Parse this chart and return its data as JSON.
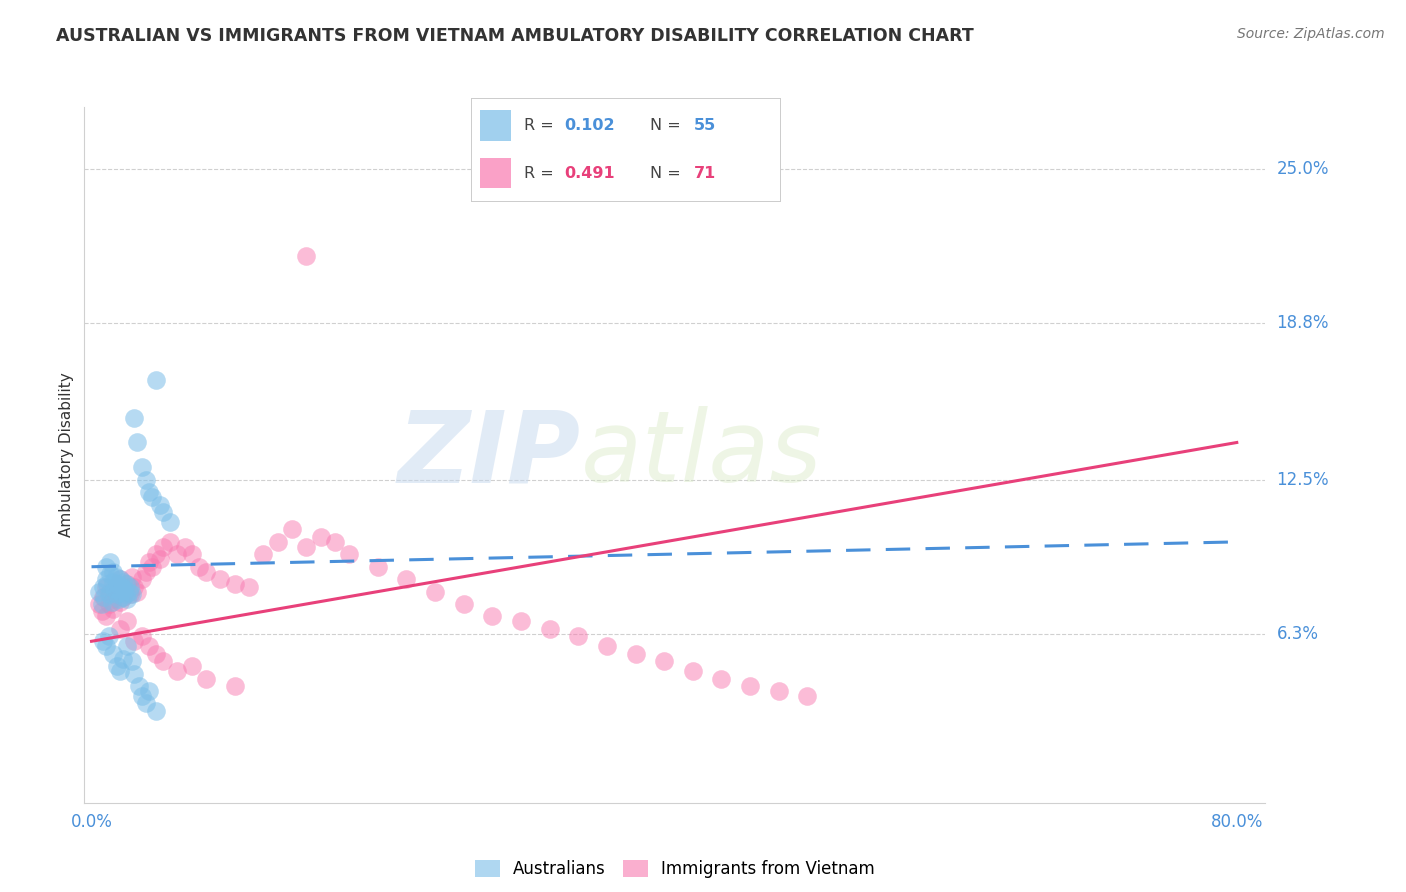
{
  "title": "AUSTRALIAN VS IMMIGRANTS FROM VIETNAM AMBULATORY DISABILITY CORRELATION CHART",
  "source": "Source: ZipAtlas.com",
  "ylabel": "Ambulatory Disability",
  "ytick_labels": [
    "6.3%",
    "12.5%",
    "18.8%",
    "25.0%"
  ],
  "ytick_values": [
    0.063,
    0.125,
    0.188,
    0.25
  ],
  "xlim": [
    -0.005,
    0.82
  ],
  "ylim": [
    -0.005,
    0.275
  ],
  "color_blue": "#7abde8",
  "color_pink": "#f87ab0",
  "color_blue_line": "#4a90d9",
  "color_pink_line": "#e8407a",
  "color_axis_label": "#4a90d9",
  "background": "#ffffff",
  "watermark_zip": "ZIP",
  "watermark_atlas": "atlas",
  "grid_color": "#d0d0d0",
  "aus_x": [
    0.005,
    0.007,
    0.008,
    0.009,
    0.01,
    0.01,
    0.011,
    0.012,
    0.013,
    0.013,
    0.014,
    0.015,
    0.015,
    0.016,
    0.017,
    0.018,
    0.018,
    0.019,
    0.02,
    0.02,
    0.021,
    0.022,
    0.022,
    0.023,
    0.024,
    0.024,
    0.025,
    0.026,
    0.027,
    0.028,
    0.03,
    0.032,
    0.035,
    0.038,
    0.04,
    0.042,
    0.045,
    0.048,
    0.05,
    0.055,
    0.008,
    0.01,
    0.012,
    0.015,
    0.018,
    0.02,
    0.022,
    0.025,
    0.028,
    0.03,
    0.033,
    0.035,
    0.038,
    0.04,
    0.045
  ],
  "aus_y": [
    0.08,
    0.075,
    0.082,
    0.078,
    0.085,
    0.09,
    0.083,
    0.079,
    0.087,
    0.092,
    0.076,
    0.084,
    0.088,
    0.081,
    0.086,
    0.079,
    0.083,
    0.077,
    0.08,
    0.085,
    0.082,
    0.078,
    0.084,
    0.081,
    0.079,
    0.083,
    0.077,
    0.08,
    0.082,
    0.079,
    0.15,
    0.14,
    0.13,
    0.125,
    0.12,
    0.118,
    0.165,
    0.115,
    0.112,
    0.108,
    0.06,
    0.058,
    0.062,
    0.055,
    0.05,
    0.048,
    0.053,
    0.058,
    0.052,
    0.047,
    0.042,
    0.038,
    0.035,
    0.04,
    0.032
  ],
  "viet_x": [
    0.005,
    0.007,
    0.008,
    0.01,
    0.01,
    0.012,
    0.013,
    0.015,
    0.015,
    0.017,
    0.018,
    0.02,
    0.02,
    0.022,
    0.023,
    0.025,
    0.027,
    0.028,
    0.03,
    0.032,
    0.035,
    0.038,
    0.04,
    0.042,
    0.045,
    0.048,
    0.05,
    0.055,
    0.06,
    0.065,
    0.07,
    0.075,
    0.08,
    0.09,
    0.1,
    0.11,
    0.12,
    0.13,
    0.14,
    0.15,
    0.16,
    0.17,
    0.18,
    0.2,
    0.22,
    0.24,
    0.26,
    0.28,
    0.3,
    0.32,
    0.34,
    0.36,
    0.38,
    0.4,
    0.42,
    0.44,
    0.46,
    0.48,
    0.5,
    0.15,
    0.02,
    0.025,
    0.03,
    0.035,
    0.04,
    0.045,
    0.05,
    0.06,
    0.07,
    0.08,
    0.1
  ],
  "viet_y": [
    0.075,
    0.072,
    0.078,
    0.07,
    0.082,
    0.075,
    0.08,
    0.077,
    0.073,
    0.079,
    0.082,
    0.076,
    0.085,
    0.078,
    0.08,
    0.083,
    0.079,
    0.086,
    0.082,
    0.08,
    0.085,
    0.088,
    0.092,
    0.09,
    0.095,
    0.093,
    0.098,
    0.1,
    0.095,
    0.098,
    0.095,
    0.09,
    0.088,
    0.085,
    0.083,
    0.082,
    0.095,
    0.1,
    0.105,
    0.098,
    0.102,
    0.1,
    0.095,
    0.09,
    0.085,
    0.08,
    0.075,
    0.07,
    0.068,
    0.065,
    0.062,
    0.058,
    0.055,
    0.052,
    0.048,
    0.045,
    0.042,
    0.04,
    0.038,
    0.215,
    0.065,
    0.068,
    0.06,
    0.062,
    0.058,
    0.055,
    0.052,
    0.048,
    0.05,
    0.045,
    0.042
  ],
  "aus_trend_x": [
    0.0,
    0.8
  ],
  "aus_trend_y": [
    0.09,
    0.1
  ],
  "viet_trend_x": [
    0.0,
    0.8
  ],
  "viet_trend_y": [
    0.06,
    0.14
  ]
}
